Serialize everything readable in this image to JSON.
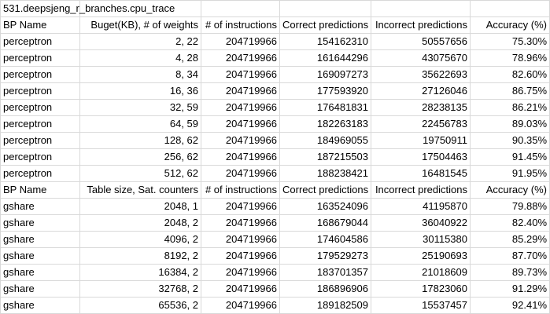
{
  "title": "531.deepsjeng_r_branches.cpu_trace",
  "perceptron_header": [
    "BP Name",
    "Buget(KB), # of weights",
    "# of instructions",
    "Correct predictions",
    "Incorrect predictions",
    "Accuracy (%)"
  ],
  "perceptron_rows": [
    [
      "perceptron",
      "2, 22",
      "204719966",
      "154162310",
      "50557656",
      "75.30%"
    ],
    [
      "perceptron",
      "4, 28",
      "204719966",
      "161644296",
      "43075670",
      "78.96%"
    ],
    [
      "perceptron",
      "8, 34",
      "204719966",
      "169097273",
      "35622693",
      "82.60%"
    ],
    [
      "perceptron",
      "16, 36",
      "204719966",
      "177593920",
      "27126046",
      "86.75%"
    ],
    [
      "perceptron",
      "32, 59",
      "204719966",
      "176481831",
      "28238135",
      "86.21%"
    ],
    [
      "perceptron",
      "64, 59",
      "204719966",
      "182263183",
      "22456783",
      "89.03%"
    ],
    [
      "perceptron",
      "128, 62",
      "204719966",
      "184969055",
      "19750911",
      "90.35%"
    ],
    [
      "perceptron",
      "256, 62",
      "204719966",
      "187215503",
      "17504463",
      "91.45%"
    ],
    [
      "perceptron",
      "512, 62",
      "204719966",
      "188238421",
      "16481545",
      "91.95%"
    ]
  ],
  "gshare_header": [
    "BP Name",
    "Table size, Sat. counters",
    "# of instructions",
    "Correct predictions",
    "Incorrect predictions",
    "Accuracy (%)"
  ],
  "gshare_rows": [
    [
      "gshare",
      "2048, 1",
      "204719966",
      "163524096",
      "41195870",
      "79.88%"
    ],
    [
      "gshare",
      "2048, 2",
      "204719966",
      "168679044",
      "36040922",
      "82.40%"
    ],
    [
      "gshare",
      "4096, 2",
      "204719966",
      "174604586",
      "30115380",
      "85.29%"
    ],
    [
      "gshare",
      "8192, 2",
      "204719966",
      "179529273",
      "25190693",
      "87.70%"
    ],
    [
      "gshare",
      "16384, 2",
      "204719966",
      "183701357",
      "21018609",
      "89.73%"
    ],
    [
      "gshare",
      "32768, 2",
      "204719966",
      "186896906",
      "17823060",
      "91.29%"
    ],
    [
      "gshare",
      "65536, 2",
      "204719966",
      "189182509",
      "15537457",
      "92.41%"
    ]
  ]
}
